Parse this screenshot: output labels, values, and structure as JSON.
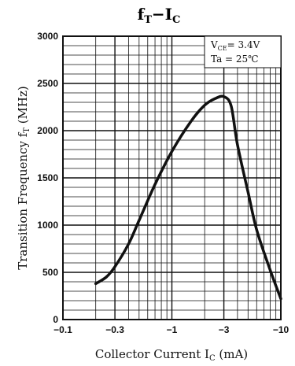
{
  "chart_data": {
    "type": "line",
    "title": "fT−IC",
    "xlabel": "Collector Current  IC (mA)",
    "ylabel": "Transition Frequency fT (MHz)",
    "x_scale": "log",
    "x_direction": "negative",
    "xlim": [
      -0.1,
      -10
    ],
    "ylim": [
      0,
      3000
    ],
    "x_ticks": [
      "-0.1",
      "-0.3",
      "-1",
      "-3",
      "-10"
    ],
    "y_ticks": [
      "0",
      "500",
      "1000",
      "1500",
      "2000",
      "2500",
      "3000"
    ],
    "grid": true,
    "conditions": [
      "VCE = 3.4V",
      "Ta = 25℃"
    ],
    "legend_position": "top-right",
    "series": [
      {
        "x": [
          -0.2,
          -0.25,
          -0.3,
          -0.4,
          -0.5,
          -0.7,
          -1.0,
          -1.5,
          -2.0,
          -2.5,
          -3.0,
          -3.5,
          -4.0,
          -5.0,
          -6.0,
          -8.0,
          -10.0
        ],
        "y": [
          380,
          450,
          560,
          800,
          1050,
          1430,
          1780,
          2100,
          2270,
          2340,
          2360,
          2260,
          1850,
          1350,
          950,
          520,
          220
        ]
      }
    ]
  }
}
